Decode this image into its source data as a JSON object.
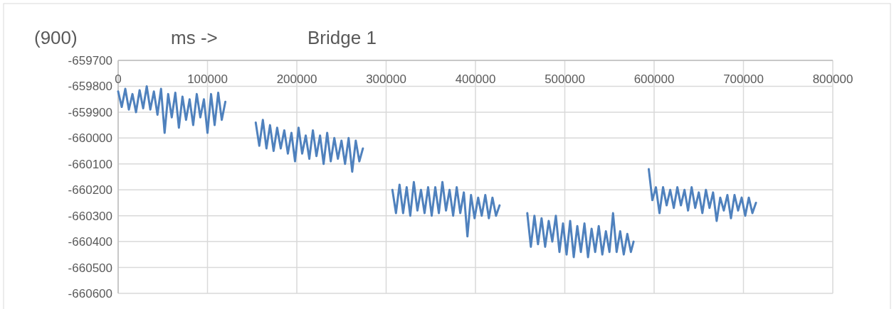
{
  "chart_data": {
    "type": "line",
    "title": "Bridge 1",
    "xlabel": "ms ->",
    "ylabel": "(900)",
    "xlim": [
      0,
      800000
    ],
    "xticks": [
      0,
      100000,
      200000,
      300000,
      400000,
      500000,
      600000,
      700000,
      800000
    ],
    "ylim": [
      -660600,
      -659700
    ],
    "yticks": [
      -659700,
      -659800,
      -659900,
      -660000,
      -660100,
      -660200,
      -660300,
      -660400,
      -660500,
      -660600
    ],
    "grid": true,
    "marker": "none",
    "line_style": "solid",
    "series": [
      {
        "color": "#4f81bd",
        "x": [
          0,
          4000,
          8000,
          12000,
          16000,
          20000,
          24000,
          28000,
          32000,
          36000,
          40000,
          44000,
          48000,
          52000,
          56000,
          60000,
          64000,
          68000,
          72000,
          76000,
          80000,
          84000,
          88000,
          92000,
          96000,
          100000,
          104000,
          108000,
          112000,
          116000,
          120000,
          137000,
          154000,
          158000,
          162000,
          166000,
          170000,
          174000,
          178000,
          182000,
          186000,
          190000,
          194000,
          198000,
          202000,
          206000,
          210000,
          214000,
          218000,
          222000,
          226000,
          230000,
          234000,
          238000,
          242000,
          246000,
          250000,
          254000,
          258000,
          262000,
          266000,
          270000,
          274000,
          290000,
          307000,
          311000,
          315000,
          319000,
          323000,
          327000,
          331000,
          335000,
          339000,
          343000,
          347000,
          351000,
          355000,
          359000,
          363000,
          367000,
          371000,
          375000,
          379000,
          383000,
          387000,
          391000,
          395000,
          399000,
          403000,
          407000,
          411000,
          415000,
          419000,
          423000,
          427000,
          443000,
          458000,
          462000,
          466000,
          470000,
          474000,
          478000,
          482000,
          486000,
          490000,
          494000,
          498000,
          502000,
          506000,
          510000,
          514000,
          518000,
          522000,
          526000,
          530000,
          534000,
          538000,
          542000,
          546000,
          550000,
          554000,
          558000,
          562000,
          566000,
          570000,
          574000,
          577000,
          586000,
          594000,
          598000,
          602000,
          606000,
          610000,
          614000,
          618000,
          622000,
          626000,
          630000,
          634000,
          638000,
          642000,
          646000,
          650000,
          654000,
          658000,
          662000,
          666000,
          670000,
          674000,
          678000,
          682000,
          686000,
          690000,
          694000,
          698000,
          702000,
          706000,
          710000,
          714000
        ],
        "values": [
          -659820,
          -659880,
          -659810,
          -659890,
          -659830,
          -659900,
          -659815,
          -659885,
          -659800,
          -659890,
          -659820,
          -659910,
          -659810,
          -659980,
          -659830,
          -659920,
          -659825,
          -659960,
          -659840,
          -659930,
          -659850,
          -659950,
          -659830,
          -659920,
          -659850,
          -659980,
          -659830,
          -659950,
          -659825,
          -659930,
          -659860,
          null,
          -659940,
          -660030,
          -659930,
          -660040,
          -659950,
          -660050,
          -659960,
          -660040,
          -659970,
          -660060,
          -659980,
          -660090,
          -659960,
          -660060,
          -659990,
          -660080,
          -659970,
          -660070,
          -659990,
          -660100,
          -659980,
          -660090,
          -660000,
          -660080,
          -660010,
          -660100,
          -660000,
          -660130,
          -660010,
          -660090,
          -660040,
          null,
          -660200,
          -660290,
          -660180,
          -660290,
          -660190,
          -660300,
          -660170,
          -660280,
          -660200,
          -660290,
          -660190,
          -660300,
          -660190,
          -660290,
          -660170,
          -660280,
          -660200,
          -660300,
          -660190,
          -660290,
          -660210,
          -660380,
          -660220,
          -660310,
          -660230,
          -660300,
          -660220,
          -660310,
          -660230,
          -660300,
          -660260,
          null,
          -660290,
          -660420,
          -660300,
          -660410,
          -660310,
          -660420,
          -660320,
          -660400,
          -660300,
          -660440,
          -660330,
          -660450,
          -660320,
          -660460,
          -660340,
          -660440,
          -660330,
          -660460,
          -660350,
          -660440,
          -660340,
          -660450,
          -660360,
          -660440,
          -660290,
          -660440,
          -660360,
          -660450,
          -660370,
          -660440,
          -660400,
          null,
          -660120,
          -660240,
          -660190,
          -660290,
          -660190,
          -660260,
          -660200,
          -660270,
          -660190,
          -660260,
          -660200,
          -660280,
          -660190,
          -660270,
          -660210,
          -660290,
          -660200,
          -660270,
          -660210,
          -660320,
          -660230,
          -660280,
          -660220,
          -660310,
          -660220,
          -660280,
          -660230,
          -660300,
          -660230,
          -660290,
          -660250
        ]
      }
    ]
  }
}
